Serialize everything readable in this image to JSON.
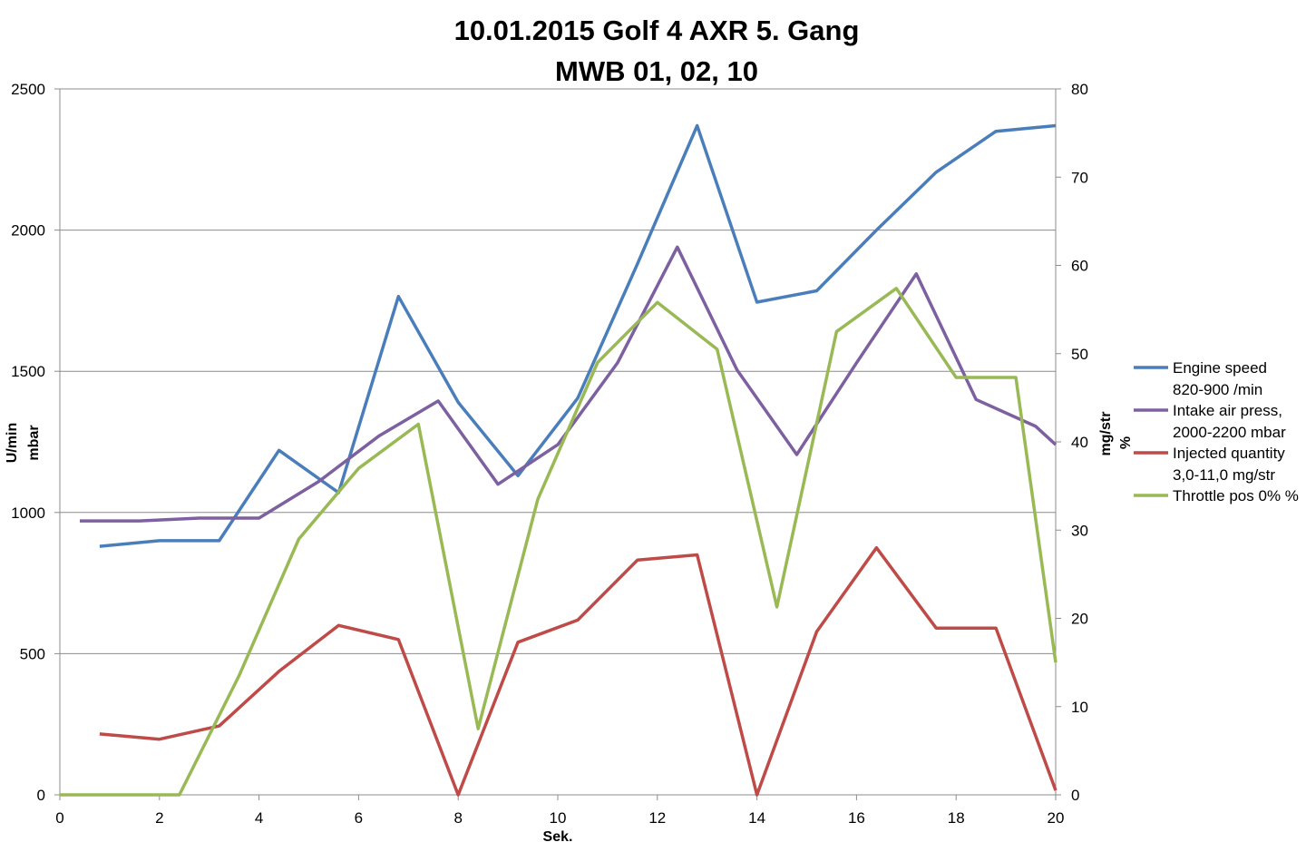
{
  "chart_data": {
    "type": "line",
    "title": [
      "10.01.2015 Golf 4 AXR 5. Gang",
      "MWB 01, 02, 10"
    ],
    "xlabel": "Sek.",
    "ylabel_left": [
      "U/min",
      "mbar"
    ],
    "ylabel_right": [
      "mg/str",
      "%"
    ],
    "xlim": [
      0,
      20
    ],
    "ylim_left": [
      0,
      2500
    ],
    "ylim_right": [
      0,
      80
    ],
    "x_ticks": [
      "0",
      "2",
      "4",
      "6",
      "8",
      "10",
      "12",
      "14",
      "16",
      "18",
      "20"
    ],
    "y_left_ticks": [
      "0",
      "500",
      "1000",
      "1500",
      "2000",
      "2500"
    ],
    "y_right_ticks": [
      "0",
      "10",
      "20",
      "30",
      "40",
      "50",
      "60",
      "70",
      "80"
    ],
    "grid": "horizontal",
    "legend_position": "right",
    "series": [
      {
        "name": [
          "Engine speed",
          "820-900  /min"
        ],
        "axis": "left",
        "color": "#4a7ebb",
        "x": [
          0.8,
          2.0,
          3.2,
          4.4,
          5.6,
          6.8,
          8.0,
          9.2,
          10.4,
          11.6,
          12.8,
          14.0,
          15.2,
          16.4,
          17.6,
          18.8,
          20.0
        ],
        "y": [
          880,
          900,
          900,
          1220,
          1070,
          1765,
          1390,
          1130,
          1405,
          1880,
          2370,
          1745,
          1785,
          2000,
          2205,
          2350,
          2370
        ]
      },
      {
        "name": [
          "Intake air press,",
          "2000-2200  mbar"
        ],
        "axis": "left",
        "color": "#7d60a0",
        "x": [
          0.4,
          1.6,
          2.8,
          4.0,
          5.2,
          6.4,
          7.6,
          8.8,
          10.0,
          11.2,
          12.4,
          13.6,
          14.8,
          16.0,
          17.2,
          18.4,
          19.6,
          20.0
        ],
        "y": [
          970,
          970,
          980,
          980,
          1110,
          1270,
          1395,
          1100,
          1240,
          1530,
          1940,
          1505,
          1205,
          1530,
          1845,
          1400,
          1305,
          1240
        ]
      },
      {
        "name": [
          "Injected quantity",
          "3,0-11,0  mg/str"
        ],
        "axis": "right",
        "color": "#be4b48",
        "x": [
          0.8,
          2.0,
          3.2,
          4.4,
          5.6,
          6.8,
          8.0,
          9.2,
          10.4,
          11.6,
          12.8,
          14.0,
          15.2,
          16.4,
          17.6,
          18.8,
          20.0
        ],
        "y": [
          6.9,
          6.3,
          7.8,
          14.0,
          19.2,
          17.6,
          0.0,
          17.3,
          19.8,
          26.6,
          27.2,
          0.0,
          18.5,
          28.0,
          18.9,
          18.9,
          0.5
        ]
      },
      {
        "name": [
          "Throttle pos 0% %"
        ],
        "axis": "right",
        "color": "#98b954",
        "x": [
          0.0,
          2.4,
          3.6,
          4.8,
          6.0,
          7.2,
          8.4,
          9.6,
          10.8,
          12.0,
          13.2,
          14.4,
          15.6,
          16.8,
          18.0,
          19.2,
          20.0
        ],
        "y": [
          0.0,
          0.0,
          13.5,
          29.0,
          37.0,
          42.0,
          7.5,
          33.5,
          49.0,
          55.8,
          50.5,
          21.3,
          52.5,
          57.4,
          47.3,
          47.3,
          15.0
        ]
      }
    ]
  }
}
